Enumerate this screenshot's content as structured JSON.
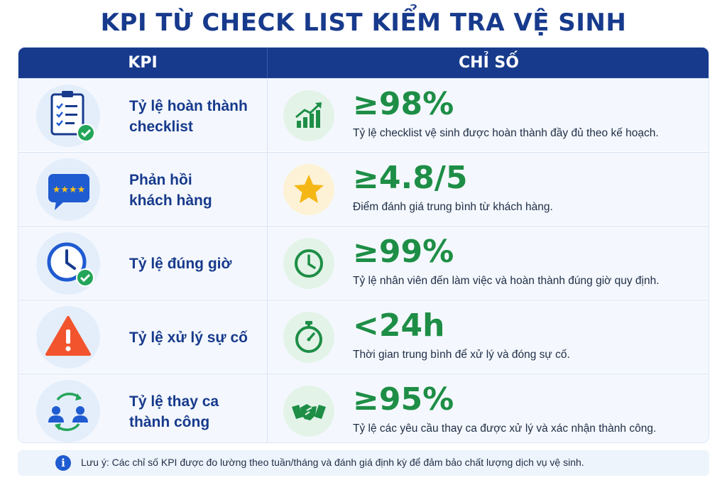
{
  "title": "KPI TỪ CHECK LIST KIỂM TRA VỆ SINH",
  "header": {
    "kpi": "KPI",
    "value": "CHỈ SỐ"
  },
  "rows": [
    {
      "kpi_line1": "Tỷ lệ hoàn thành",
      "kpi_line2": "checklist",
      "kpi_icon": "clipboard-checklist-icon",
      "value_icon": "growth-chart-icon",
      "value": "≥98%",
      "desc": "Tỷ lệ checklist vệ sinh được hoàn thành đầy đủ theo kế hoạch."
    },
    {
      "kpi_line1": "Phản hồi",
      "kpi_line2": "khách hàng",
      "kpi_icon": "rating-bubble-icon",
      "value_icon": "star-icon",
      "value": "≥4.8/5",
      "desc": "Điểm đánh giá trung bình từ khách hàng."
    },
    {
      "kpi_line1": "Tỷ lệ đúng giờ",
      "kpi_line2": "",
      "kpi_icon": "clock-check-icon",
      "value_icon": "clock-icon",
      "value": "≥99%",
      "desc": "Tỷ lệ nhân viên đến làm việc và hoàn thành đúng giờ quy định."
    },
    {
      "kpi_line1": "Tỷ lệ xử lý sự cố",
      "kpi_line2": "",
      "kpi_icon": "warning-icon",
      "value_icon": "stopwatch-icon",
      "value": "<24h",
      "desc": "Thời gian trung bình để xử lý và đóng sự cố."
    },
    {
      "kpi_line1": "Tỷ lệ thay ca",
      "kpi_line2": "thành công",
      "kpi_icon": "shift-swap-icon",
      "value_icon": "handshake-icon",
      "value": "≥95%",
      "desc": "Tỷ lệ các yêu cầu thay ca được xử lý và xác nhận thành công."
    }
  ],
  "note": {
    "icon": "info-icon",
    "text": "Lưu ý: Các chỉ số KPI được đo lường theo tuần/tháng và đánh giá định kỳ để đảm bảo chất lượng dịch vụ vệ sinh."
  },
  "colors": {
    "navy": "#173a8c",
    "green": "#1e8e46",
    "row_bg": "#f4f8fe",
    "warning": "#f2542d"
  }
}
